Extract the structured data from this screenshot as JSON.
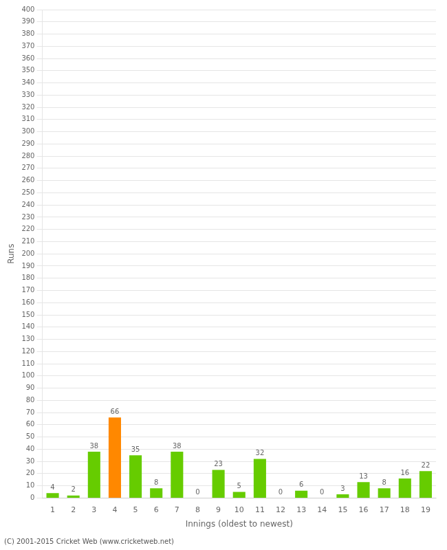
{
  "chart_data": {
    "type": "bar",
    "xlabel": "Innings (oldest to newest)",
    "ylabel": "Runs",
    "categories": [
      "1",
      "2",
      "3",
      "4",
      "5",
      "6",
      "7",
      "8",
      "9",
      "10",
      "11",
      "12",
      "13",
      "14",
      "15",
      "16",
      "17",
      "18",
      "19"
    ],
    "values": [
      4,
      2,
      38,
      66,
      35,
      8,
      38,
      0,
      23,
      5,
      32,
      0,
      6,
      0,
      3,
      13,
      8,
      16,
      22
    ],
    "colors": [
      "#66cc00",
      "#66cc00",
      "#66cc00",
      "#ff8800",
      "#66cc00",
      "#66cc00",
      "#66cc00",
      "#66cc00",
      "#66cc00",
      "#66cc00",
      "#66cc00",
      "#66cc00",
      "#66cc00",
      "#66cc00",
      "#66cc00",
      "#66cc00",
      "#66cc00",
      "#66cc00",
      "#66cc00"
    ],
    "ylim": [
      0,
      400
    ],
    "yticks": [
      0,
      10,
      20,
      30,
      40,
      50,
      60,
      70,
      80,
      90,
      100,
      110,
      120,
      130,
      140,
      150,
      160,
      170,
      180,
      190,
      200,
      210,
      220,
      230,
      240,
      250,
      260,
      270,
      280,
      290,
      300,
      310,
      320,
      330,
      340,
      350,
      360,
      370,
      380,
      390,
      400
    ],
    "grid": true,
    "data_labels": true,
    "annotations": [
      "(C) 2001-2015 Cricket Web (www.cricketweb.net)"
    ]
  }
}
